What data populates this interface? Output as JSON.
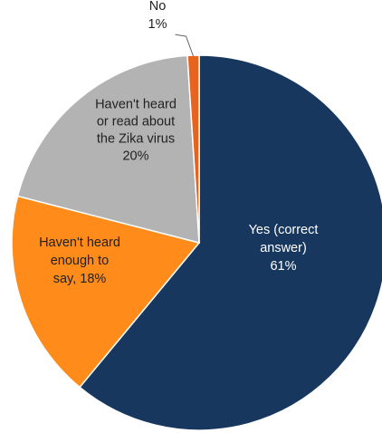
{
  "chart_data": {
    "type": "pie",
    "slices": [
      {
        "label_lines": [
          "Yes (correct",
          "answer)",
          "61%"
        ],
        "value": 61,
        "color": "#17375e",
        "text_color": "#ffffff"
      },
      {
        "label_lines": [
          "Haven't heard",
          "enough to",
          "say, 18%"
        ],
        "value": 18,
        "color": "#ff8c1a",
        "text_color": "#222222"
      },
      {
        "label_lines": [
          "Haven't heard",
          "or read about",
          "the Zika virus",
          "20%"
        ],
        "value": 20,
        "color": "#b3b3b3",
        "text_color": "#222222"
      },
      {
        "label_lines": [
          "No",
          "1%"
        ],
        "value": 1,
        "color": "#e8641e",
        "text_color": "#222222"
      }
    ],
    "start_angle_deg": 0,
    "direction": "clockwise",
    "stroke_color": "#ffffff"
  }
}
